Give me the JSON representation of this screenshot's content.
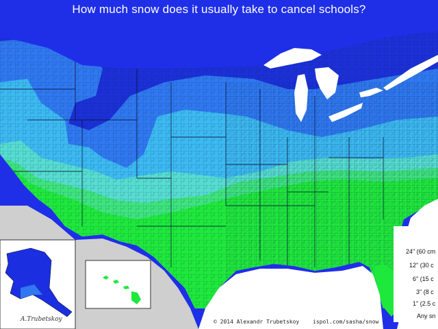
{
  "map": {
    "title": "How much snow does it usually take to cancel schools?",
    "credit_left": "© 2014 Alexandr Trubetskoy",
    "credit_right": "ispol.com/sasha/snow",
    "signature": "A.Trubetskoy",
    "legend": [
      {
        "label": "24\" (60 cm",
        "color": "#1d2fd8"
      },
      {
        "label": "12\" (30 c",
        "color": "#2f7ff0"
      },
      {
        "label": "6\" (15 c",
        "color": "#3fc6f2"
      },
      {
        "label": "3\" (8 c",
        "color": "#5ee0c8"
      },
      {
        "label": "1\" (2.5 c",
        "color": "#3ce07a"
      },
      {
        "label": "Any sn",
        "color": "#1fe83a"
      }
    ]
  },
  "colors": {
    "ocean": "#1f2fe8",
    "lakes": "#ffffff",
    "canada": "#d0d0d0",
    "mexico": "#d0d0d0",
    "water_bg": "#ffffff",
    "border_lines": "#0a1a40"
  }
}
